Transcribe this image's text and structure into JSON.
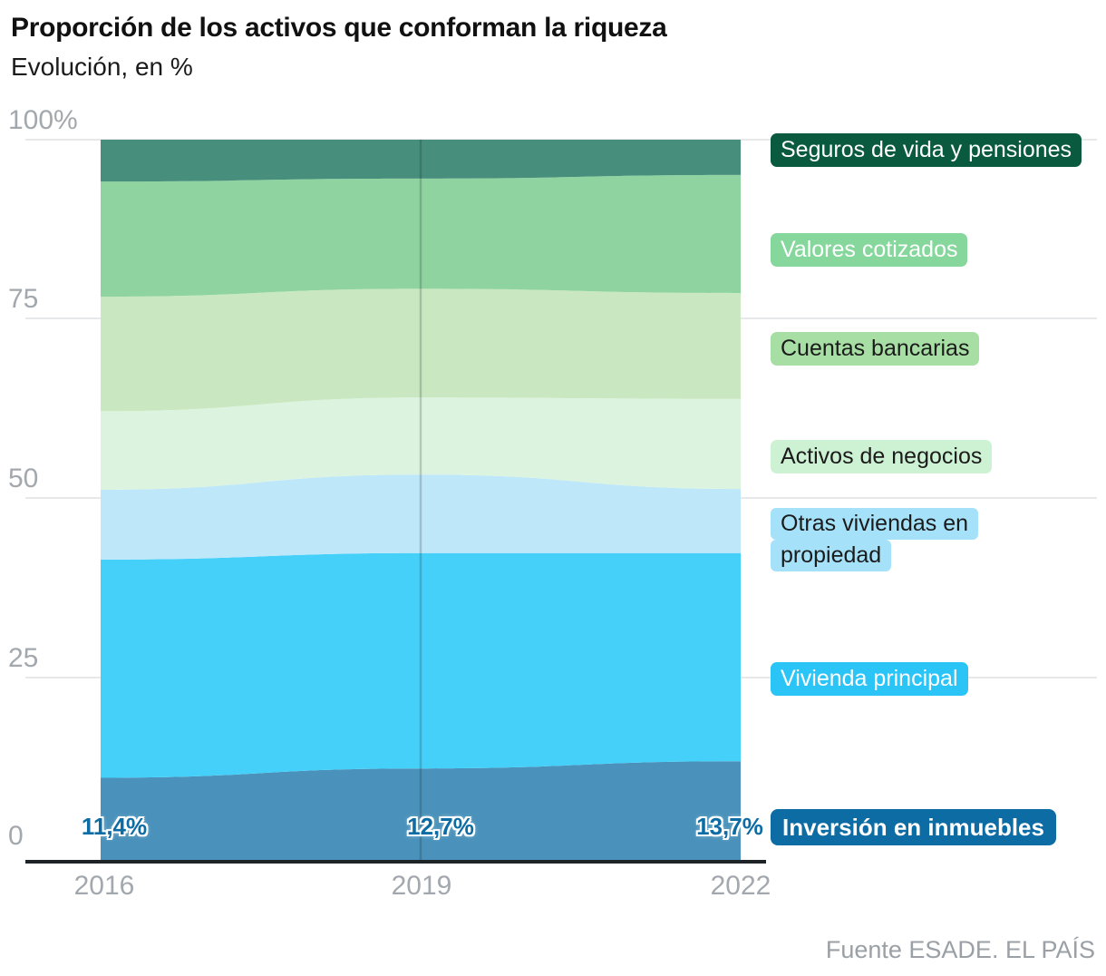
{
  "title": "Proporción de los activos que conforman la riqueza",
  "subtitle": "Evolución, en %",
  "source": "Fuente ESADE. EL PAÍS",
  "chart_data": {
    "type": "area",
    "stacked": true,
    "unit": "%",
    "title": "Proporción de los activos que conforman la riqueza",
    "x": [
      "2016",
      "2019",
      "2022"
    ],
    "y_tick_labels": [
      "100%",
      "75",
      "50",
      "25",
      "0"
    ],
    "y_tick_values": [
      100,
      75,
      50,
      25,
      0
    ],
    "ylim": [
      0,
      100
    ],
    "grid": true,
    "legend_position": "right",
    "axis_color": "#1d2327",
    "gridline_color": "#e7e8e9",
    "tick_label_color": "#a2a8ad",
    "series": [
      {
        "name": "Inversión en inmuebles",
        "values": [
          11.4,
          12.7,
          13.7
        ],
        "data_labels": [
          "11,4%",
          "12,7%",
          "13,7%"
        ],
        "data_label_color": "#0d6ca4",
        "color": "#4a92bb",
        "label_bg": "#0d6ca4",
        "label_text": "#ffffff"
      },
      {
        "name": "Vivienda principal",
        "values": [
          30.3,
          29.9,
          28.9
        ],
        "color": "#45d0fa",
        "label_bg": "#2ac4f7",
        "label_text": "#ffffff"
      },
      {
        "name": "Otras viviendas en propiedad",
        "label_lines": [
          "Otras viviendas en",
          "propiedad"
        ],
        "values": [
          9.7,
          10.9,
          8.9
        ],
        "color": "#bee7fa",
        "label_bg": "#a5e2fa",
        "label_text": "#1b1b1b"
      },
      {
        "name": "Activos de negocios",
        "values": [
          10.9,
          10.7,
          12.5
        ],
        "color": "#dcf4df",
        "label_bg": "#cdf2d3",
        "label_text": "#1b1b1b"
      },
      {
        "name": "Cuentas bancarias",
        "values": [
          15.9,
          15.1,
          14.7
        ],
        "color": "#c9e8c1",
        "label_bg": "#a6dea3",
        "label_text": "#1b1b1b"
      },
      {
        "name": "Valores cotizados",
        "values": [
          16.0,
          15.3,
          16.4
        ],
        "color": "#8fd4a0",
        "label_bg": "#85d79b",
        "label_text": "#ffffff"
      },
      {
        "name": "Seguros de vida y pensiones",
        "values": [
          5.8,
          5.4,
          4.9
        ],
        "color": "#478f7c",
        "label_bg": "#0a5a40",
        "label_text": "#ffffff"
      }
    ]
  }
}
